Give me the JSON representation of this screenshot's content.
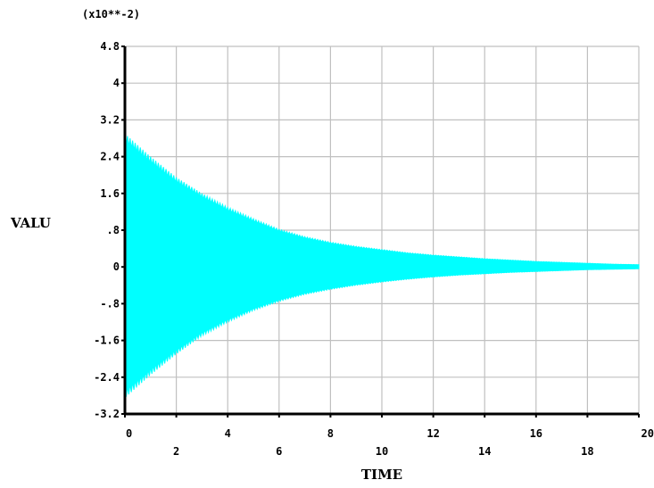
{
  "chart_data": {
    "type": "area",
    "title": "",
    "scale_note": "(x10**-2)",
    "xlabel": "TIME",
    "ylabel": "VALU",
    "xlim": [
      0,
      20
    ],
    "ylim": [
      -3.2,
      4.8
    ],
    "xticks": [
      0,
      2,
      4,
      6,
      8,
      10,
      12,
      14,
      16,
      18,
      20
    ],
    "xtick_labels": [
      "0",
      "2",
      "4",
      "6",
      "8",
      "10",
      "12",
      "14",
      "16",
      "18",
      "20"
    ],
    "yticks": [
      -3.2,
      -2.4,
      -1.6,
      -0.8,
      0,
      0.8,
      1.6,
      2.4,
      3.2,
      4,
      4.8
    ],
    "ytick_labels": [
      "-3.2",
      "-2.4",
      "-1.6",
      "-.8",
      "0",
      ".8",
      "1.6",
      "2.4",
      "3.2",
      "4",
      "4.8"
    ],
    "grid": true,
    "legend": "none",
    "series": [
      {
        "color": "#00ffff",
        "envelope": {
          "x": [
            0,
            1,
            2,
            3,
            4,
            5,
            6,
            7,
            8,
            9,
            10,
            11,
            12,
            13,
            14,
            15,
            16,
            17,
            18,
            19,
            20
          ],
          "upper": [
            2.9,
            2.4,
            1.95,
            1.6,
            1.3,
            1.05,
            0.82,
            0.66,
            0.54,
            0.45,
            0.38,
            0.31,
            0.26,
            0.22,
            0.18,
            0.15,
            0.12,
            0.1,
            0.08,
            0.06,
            0.05
          ],
          "lower": [
            -2.85,
            -2.35,
            -1.9,
            -1.5,
            -1.2,
            -0.95,
            -0.75,
            -0.6,
            -0.49,
            -0.4,
            -0.33,
            -0.27,
            -0.22,
            -0.18,
            -0.15,
            -0.12,
            -0.1,
            -0.08,
            -0.06,
            -0.05,
            -0.04
          ]
        }
      }
    ],
    "colors": {
      "grid": "#c0c0c0",
      "axis": "#000000",
      "signal": "#00ffff",
      "background": "#ffffff"
    }
  }
}
